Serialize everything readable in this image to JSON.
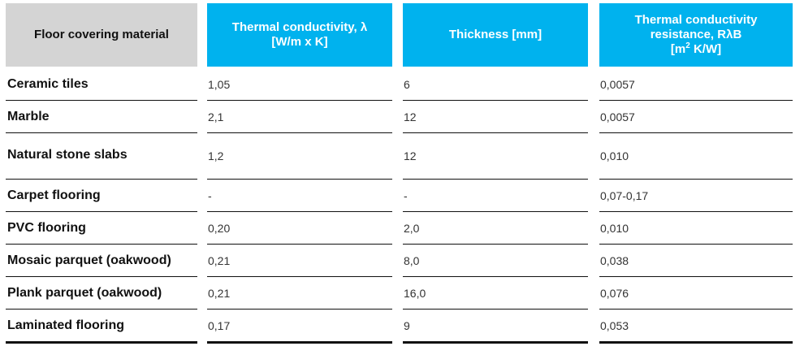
{
  "header": {
    "col0": "Floor covering material",
    "col1": "Thermal conductivity, λ\n[W/m x K]",
    "col2": "Thickness [mm]",
    "col3_line1": "Thermal conductivity\nresistance, RλB",
    "col3_unit_a": "[m",
    "col3_unit_sup": "2",
    "col3_unit_b": " K/W]"
  },
  "rows": [
    {
      "name": "Ceramic tiles",
      "lambda": "1,05",
      "thickness": "6",
      "resistance": "0,0057"
    },
    {
      "name": "Marble",
      "lambda": "2,1",
      "thickness": "12",
      "resistance": "0,0057"
    },
    {
      "name": "Natural stone slabs",
      "lambda": "1,2",
      "thickness": "12",
      "resistance": "0,010"
    },
    {
      "name": "Carpet flooring",
      "lambda": "-",
      "thickness": "-",
      "resistance": "0,07-0,17"
    },
    {
      "name": "PVC flooring",
      "lambda": "0,20",
      "thickness": "2,0",
      "resistance": "0,010"
    },
    {
      "name": "Mosaic parquet (oakwood)",
      "lambda": "0,21",
      "thickness": "8,0",
      "resistance": "0,038"
    },
    {
      "name": "Plank parquet (oakwood)",
      "lambda": "0,21",
      "thickness": "16,0",
      "resistance": "0,076"
    },
    {
      "name": "Laminated flooring",
      "lambda": "0,17",
      "thickness": "9",
      "resistance": "0,053"
    }
  ]
}
